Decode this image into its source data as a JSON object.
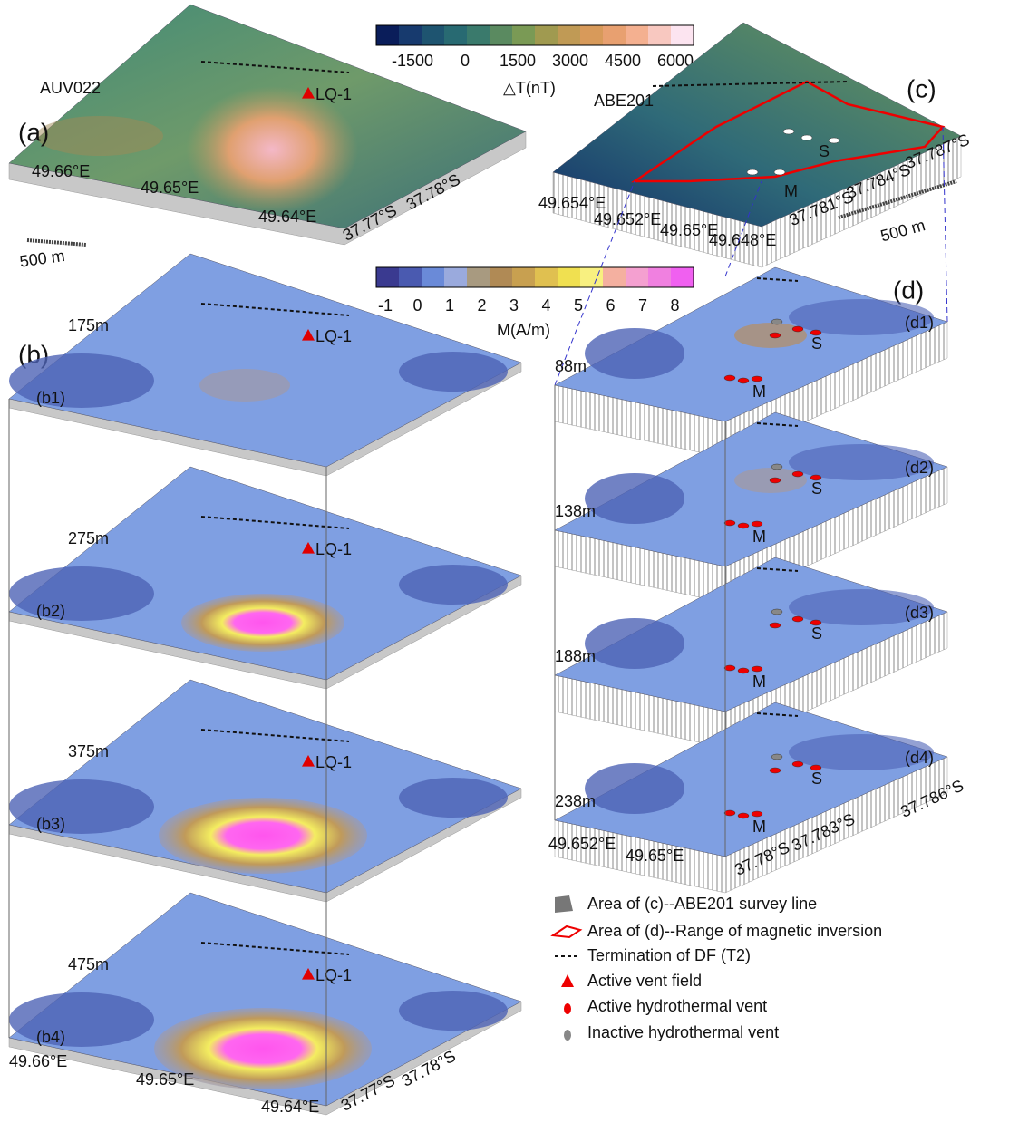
{
  "panel_a": {
    "label": "(a)",
    "survey": "AUV022",
    "vent": "LQ-1",
    "lon_labels": [
      "49.66°E",
      "49.65°E",
      "49.64°E"
    ],
    "lat_labels": [
      "37.77°S",
      "37.78°S"
    ],
    "scale": "500 m"
  },
  "colorbar_dt": {
    "ticks": [
      "-1500",
      "0",
      "1500",
      "3000",
      "4500",
      "6000"
    ],
    "label": "△T(nT)"
  },
  "panel_c": {
    "label": "(c)",
    "survey": "ABE201",
    "sites": [
      "S",
      "M"
    ],
    "lon_labels": [
      "49.654°E",
      "49.652°E",
      "49.65°E",
      "49.648°E"
    ],
    "lat_labels": [
      "37.781°S",
      "37.784°S",
      "37.787°S"
    ],
    "scale": "500 m"
  },
  "colorbar_m": {
    "ticks": [
      "-1",
      "0",
      "1",
      "2",
      "3",
      "4",
      "5",
      "6",
      "7",
      "8"
    ],
    "label": "M(A/m)"
  },
  "panel_b": {
    "label": "(b)",
    "slices": [
      {
        "label": "(b1)",
        "depth": "175m",
        "vent": "LQ-1"
      },
      {
        "label": "(b2)",
        "depth": "275m",
        "vent": "LQ-1"
      },
      {
        "label": "(b3)",
        "depth": "375m",
        "vent": "LQ-1"
      },
      {
        "label": "(b4)",
        "depth": "475m",
        "vent": "LQ-1"
      }
    ],
    "lon_labels": [
      "49.66°E",
      "49.65°E",
      "49.64°E"
    ],
    "lat_labels": [
      "37.77°S",
      "37.78°S"
    ]
  },
  "panel_d": {
    "label": "(d)",
    "slices": [
      {
        "label": "(d1)",
        "depth": "88m",
        "sites": [
          "S",
          "M"
        ]
      },
      {
        "label": "(d2)",
        "depth": "138m",
        "sites": [
          "S",
          "M"
        ]
      },
      {
        "label": "(d3)",
        "depth": "188m",
        "sites": [
          "S",
          "M"
        ]
      },
      {
        "label": "(d4)",
        "depth": "238m",
        "sites": [
          "S",
          "M"
        ]
      }
    ],
    "lon_labels": [
      "49.652°E",
      "49.65°E"
    ],
    "lat_labels": [
      "37.78°S",
      "37.783°S",
      "37.786°S"
    ]
  },
  "legend": [
    "Area of (c)--ABE201 survey line",
    "Area of (d)--Range of magnetic inversion",
    "Termination of DF (T2)",
    "Active vent field",
    "Active hydrothermal vent",
    "Inactive hydrothermal vent"
  ]
}
